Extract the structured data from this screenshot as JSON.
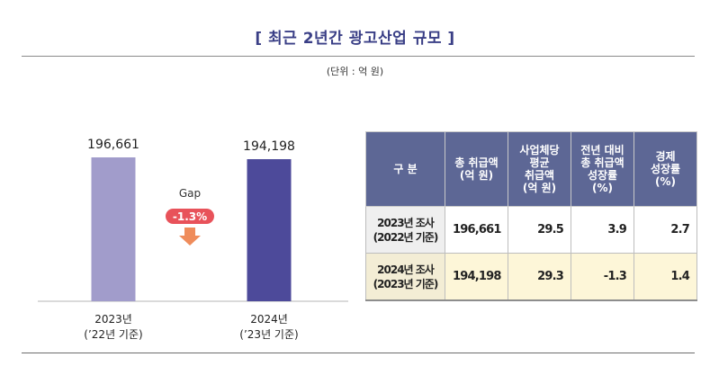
{
  "title": "[ 최근 2년간 광고산업 규모 ]",
  "unit_note": "(단위 : 억 원)",
  "chart_data": {
    "type": "bar",
    "categories": [
      {
        "line1": "2023년",
        "line2": "(’22년 기준)"
      },
      {
        "line1": "2024년",
        "line2": "(’23년 기준)"
      }
    ],
    "values": [
      196661,
      194198
    ],
    "value_labels": [
      "196,661",
      "194,198"
    ],
    "colors": [
      "#a19ccb",
      "#4d4a9a"
    ],
    "ylim": [
      0,
      196661
    ],
    "gap": {
      "label": "Gap",
      "value": "-1.3%",
      "badge_color": "#e8525a",
      "arrow_color": "#ef8c5b"
    }
  },
  "table": {
    "headers": [
      "구 분",
      "총 취급액\n(억 원)",
      "사업체당\n평균\n취급액\n(억 원)",
      "전년 대비\n총 취급액\n성장률\n(%)",
      "경제\n성장률\n(%)"
    ],
    "rows": [
      {
        "label": "2023년 조사\n(2022년 기준)",
        "total": "196,661",
        "avg": "29.5",
        "growth": "3.9",
        "econ": "2.7"
      },
      {
        "label": "2024년 조사\n(2023년 기준)",
        "total": "194,198",
        "avg": "29.3",
        "growth": "-1.3",
        "econ": "1.4"
      }
    ]
  }
}
